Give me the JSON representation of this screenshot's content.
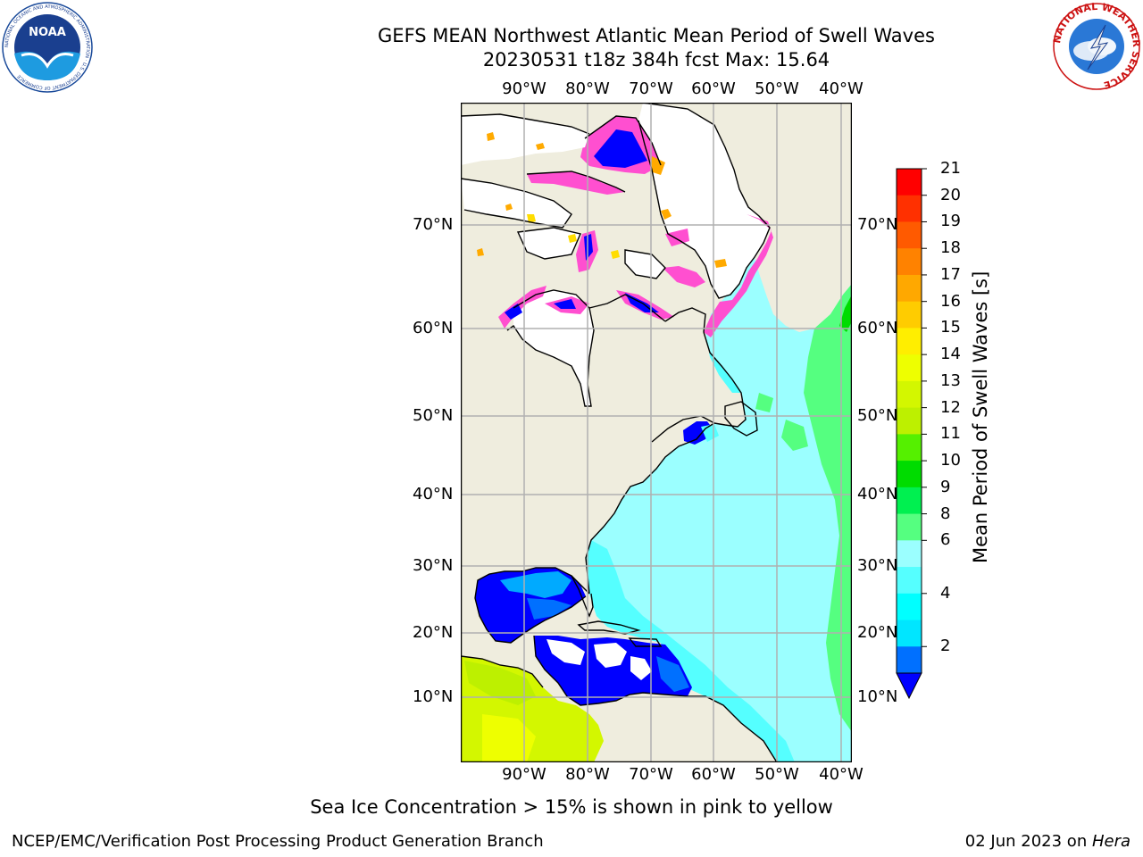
{
  "header": {
    "title_line1": "GEFS MEAN Northwest Atlantic Mean Period of Swell Waves",
    "title_line2": "20230531 t18z 384h fcst   Max: 15.64"
  },
  "logos": {
    "left": {
      "text": "NOAA",
      "ring_text": "NATIONAL OCEANIC AND ATMOSPHERIC ADMINISTRATION · U.S. DEPARTMENT OF COMMERCE"
    },
    "right": {
      "ring_text": "NATIONAL WEATHER SERVICE"
    }
  },
  "map": {
    "lon_labels": [
      "90°W",
      "80°W",
      "70°W",
      "60°W",
      "50°W",
      "40°W"
    ],
    "lat_labels": [
      "70°N",
      "60°N",
      "50°N",
      "40°N",
      "30°N",
      "20°N",
      "10°N"
    ],
    "colors": {
      "land": "#efedde",
      "ice": "#ffffff",
      "grid": "#b0b0b0"
    }
  },
  "colorbar": {
    "label": "Mean Period of Swell Waves [s]",
    "ticks": [
      "21",
      "20",
      "19",
      "18",
      "17",
      "16",
      "15",
      "14",
      "13",
      "12",
      "11",
      "10",
      "9",
      "8",
      "6",
      "4",
      "2"
    ],
    "colors": [
      "#ff0000",
      "#ff3000",
      "#ff5a00",
      "#ff8200",
      "#ffa800",
      "#ffcc00",
      "#ffee00",
      "#eeff00",
      "#d3f700",
      "#bdf000",
      "#55f000",
      "#00dc00",
      "#00f050",
      "#55ff80",
      "#9bffff",
      "#55ffff",
      "#00ffff",
      "#00e6ff",
      "#0070ff"
    ],
    "under_color": "#0000ff"
  },
  "note": "Sea Ice Concentration > 15% is shown in pink to yellow",
  "footer": {
    "left": "NCEP/EMC/Verification Post Processing Product Generation Branch",
    "right_date": "02 Jun 2023 on ",
    "right_host": "Hera"
  }
}
